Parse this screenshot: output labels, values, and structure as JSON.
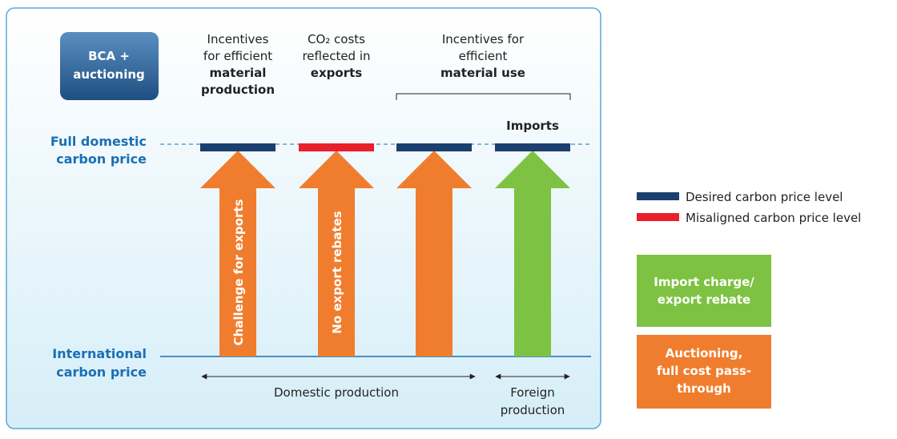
{
  "badge": [
    "BCA +",
    "auctioning"
  ],
  "headers": [
    [
      "Incentives",
      "for efficient",
      "material",
      "production"
    ],
    [
      "CO₂ costs",
      "reflected in",
      "exports"
    ],
    [
      "Incentives for",
      "efficient",
      "material use"
    ]
  ],
  "imports": "Imports",
  "levels": {
    "full": [
      "Full domestic",
      "carbon price"
    ],
    "international": [
      "International",
      "carbon price"
    ]
  },
  "arrow_labels": [
    "Challenge for exports",
    "No export rebates"
  ],
  "domestic": "Domestic production",
  "foreign": [
    "Foreign",
    "production"
  ],
  "legend": {
    "desired": "Desired carbon price level",
    "misaligned": "Misaligned carbon price level",
    "green": [
      "Import charge/",
      "export rebate"
    ],
    "orange": [
      "Auctioning,",
      "full cost pass-",
      "through"
    ]
  }
}
